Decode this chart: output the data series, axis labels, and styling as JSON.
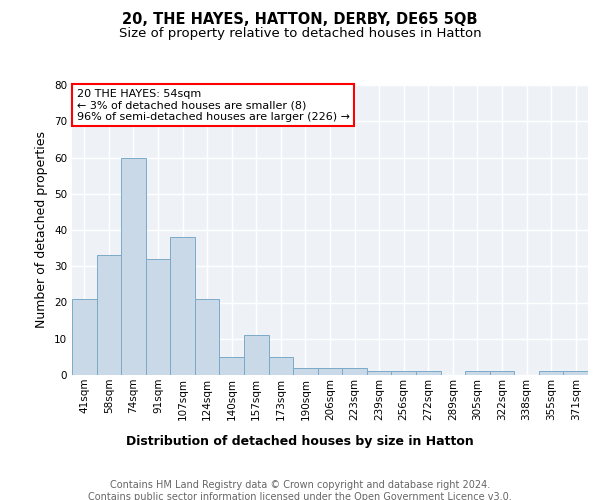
{
  "title": "20, THE HAYES, HATTON, DERBY, DE65 5QB",
  "subtitle": "Size of property relative to detached houses in Hatton",
  "xlabel": "Distribution of detached houses by size in Hatton",
  "ylabel": "Number of detached properties",
  "categories": [
    "41sqm",
    "58sqm",
    "74sqm",
    "91sqm",
    "107sqm",
    "124sqm",
    "140sqm",
    "157sqm",
    "173sqm",
    "190sqm",
    "206sqm",
    "223sqm",
    "239sqm",
    "256sqm",
    "272sqm",
    "289sqm",
    "305sqm",
    "322sqm",
    "338sqm",
    "355sqm",
    "371sqm"
  ],
  "values": [
    21,
    33,
    60,
    32,
    38,
    21,
    5,
    11,
    5,
    2,
    2,
    2,
    1,
    1,
    1,
    0,
    1,
    1,
    0,
    1,
    1
  ],
  "bar_color": "#c9d9e8",
  "bar_edge_color": "#7aaac8",
  "ylim": [
    0,
    80
  ],
  "yticks": [
    0,
    10,
    20,
    30,
    40,
    50,
    60,
    70,
    80
  ],
  "annotation_text": "20 THE HAYES: 54sqm\n← 3% of detached houses are smaller (8)\n96% of semi-detached houses are larger (226) →",
  "annotation_box_color": "white",
  "annotation_box_edge": "red",
  "footer_text": "Contains HM Land Registry data © Crown copyright and database right 2024.\nContains public sector information licensed under the Open Government Licence v3.0.",
  "background_color": "#eef2f7",
  "grid_color": "white",
  "title_fontsize": 10.5,
  "subtitle_fontsize": 9.5,
  "axis_label_fontsize": 9,
  "tick_fontsize": 7.5,
  "footer_fontsize": 7
}
